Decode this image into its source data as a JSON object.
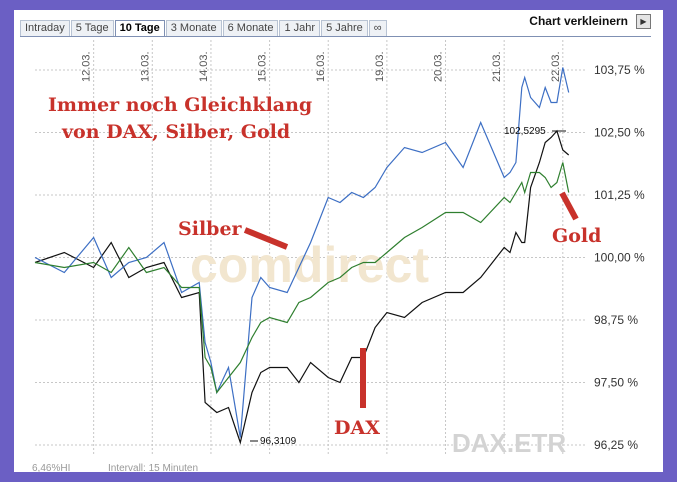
{
  "tabs": [
    {
      "label": "Intraday",
      "active": false
    },
    {
      "label": "5 Tage",
      "active": false
    },
    {
      "label": "10 Tage",
      "active": true
    },
    {
      "label": "3 Monate",
      "active": false
    },
    {
      "label": "6 Monate",
      "active": false
    },
    {
      "label": "1 Jahr",
      "active": false
    },
    {
      "label": "5 Jahre",
      "active": false
    },
    {
      "label": "∞",
      "active": false
    }
  ],
  "header": {
    "shrink_label": "Chart verkleinern",
    "shrink_icon": "play-right-icon"
  },
  "annotations": {
    "title_line1": "Immer noch Gleichklang",
    "title_line2": "von DAX, Silber, Gold",
    "silber": "Silber",
    "gold": "Gold",
    "dax": "DAX",
    "max_label": "102,5295",
    "min_label": "96,3109",
    "watermark": "comdirect",
    "symbol": "DAX.ETR"
  },
  "footer": {
    "left": "6,46%HI",
    "interval": "Intervall: 15 Minuten"
  },
  "colors": {
    "dax": "#111111",
    "silber": "#3d6fc4",
    "gold": "#2f7f2f",
    "annotation": "#c8322b",
    "frame": "#6b5fc4"
  },
  "chart_data": {
    "type": "line",
    "x_ticks": [
      "12.03.",
      "13.03.",
      "14.03.",
      "15.03.",
      "16.03.",
      "19.03.",
      "20.03.",
      "21.03.",
      "22.03."
    ],
    "y_ticks": [
      "103,75 %",
      "102,50 %",
      "101,25 %",
      "100,00 %",
      "98,75 %",
      "97,50 %",
      "96,25 %"
    ],
    "y_tick_values": [
      103.75,
      102.5,
      101.25,
      100.0,
      98.75,
      97.5,
      96.25
    ],
    "ylim": [
      95.75,
      104.4
    ],
    "xlim": [
      0,
      9.6
    ],
    "series": [
      {
        "name": "DAX",
        "color": "#111111",
        "x": [
          0,
          0.5,
          1,
          1.3,
          1.6,
          1.9,
          2.2,
          2.5,
          2.8,
          2.9,
          3.0,
          3.1,
          3.3,
          3.5,
          3.7,
          3.85,
          4.0,
          4.3,
          4.5,
          4.7,
          5.0,
          5.2,
          5.4,
          5.6,
          5.8,
          6.0,
          6.3,
          6.6,
          7.0,
          7.3,
          7.6,
          8.0,
          8.1,
          8.2,
          8.3,
          8.35,
          8.45,
          8.6,
          8.7,
          8.8,
          8.9,
          9.0,
          9.1
        ],
        "y": [
          99.9,
          100.1,
          99.8,
          100.3,
          99.6,
          99.8,
          99.9,
          99.2,
          99.3,
          97.1,
          97.0,
          96.9,
          97.0,
          96.3,
          97.3,
          97.7,
          97.8,
          97.8,
          97.5,
          97.9,
          97.6,
          97.5,
          98.0,
          98.0,
          98.6,
          98.9,
          98.8,
          99.1,
          99.3,
          99.3,
          99.6,
          100.2,
          100.1,
          100.5,
          100.3,
          100.3,
          101.4,
          101.9,
          102.3,
          102.4,
          102.53,
          102.15,
          102.05
        ]
      },
      {
        "name": "Silber",
        "color": "#3d6fc4",
        "x": [
          0,
          0.5,
          1,
          1.3,
          1.6,
          1.9,
          2.2,
          2.5,
          2.8,
          2.9,
          3.0,
          3.1,
          3.3,
          3.5,
          3.7,
          3.85,
          4.0,
          4.3,
          4.5,
          4.7,
          5.0,
          5.2,
          5.4,
          5.6,
          5.8,
          6.0,
          6.3,
          6.6,
          7.0,
          7.3,
          7.6,
          8.0,
          8.1,
          8.2,
          8.3,
          8.35,
          8.45,
          8.6,
          8.7,
          8.8,
          8.9,
          9.0,
          9.1
        ],
        "y": [
          100.0,
          99.7,
          100.4,
          99.6,
          99.9,
          100.0,
          100.3,
          99.3,
          99.5,
          98.3,
          97.9,
          97.3,
          97.8,
          96.4,
          99.2,
          99.6,
          99.4,
          99.3,
          99.8,
          100.3,
          101.2,
          101.1,
          101.3,
          101.2,
          101.4,
          101.8,
          102.2,
          102.1,
          102.3,
          101.8,
          102.7,
          101.6,
          101.7,
          101.9,
          103.4,
          103.6,
          103.2,
          103.0,
          103.4,
          103.1,
          103.1,
          103.8,
          103.3
        ]
      },
      {
        "name": "Gold",
        "color": "#2f7f2f",
        "x": [
          0,
          0.5,
          1,
          1.3,
          1.6,
          1.9,
          2.2,
          2.5,
          2.8,
          2.9,
          3.0,
          3.1,
          3.3,
          3.5,
          3.7,
          3.85,
          4.0,
          4.3,
          4.5,
          4.7,
          5.0,
          5.2,
          5.4,
          5.6,
          5.8,
          6.0,
          6.3,
          6.6,
          7.0,
          7.3,
          7.6,
          8.0,
          8.1,
          8.2,
          8.3,
          8.35,
          8.45,
          8.6,
          8.7,
          8.8,
          8.9,
          9.0,
          9.1
        ],
        "y": [
          99.9,
          99.8,
          99.9,
          99.7,
          100.2,
          99.7,
          99.8,
          99.4,
          99.4,
          98.0,
          97.8,
          97.3,
          97.6,
          97.9,
          98.4,
          98.7,
          98.8,
          98.7,
          99.1,
          99.2,
          99.5,
          99.6,
          99.8,
          99.9,
          99.9,
          100.1,
          100.4,
          100.6,
          100.9,
          100.9,
          100.7,
          101.2,
          101.1,
          101.3,
          101.5,
          101.3,
          101.7,
          101.7,
          101.6,
          101.4,
          101.5,
          101.9,
          101.3
        ]
      }
    ]
  }
}
